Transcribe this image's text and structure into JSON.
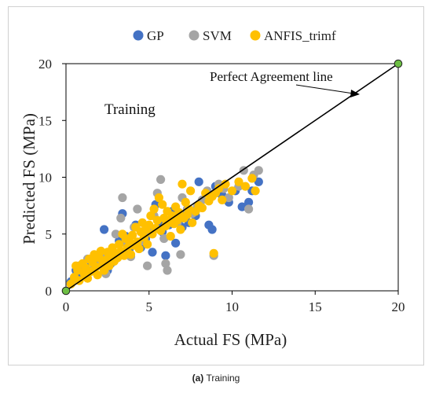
{
  "caption": {
    "label": "(a)",
    "text": "Training"
  },
  "chart_data": {
    "type": "scatter",
    "xlabel": "Actual FS (MPa)",
    "ylabel": "Predicted FS (MPa)",
    "xlim": [
      0,
      20
    ],
    "ylim": [
      0,
      20
    ],
    "xticks": [
      0,
      5,
      10,
      15,
      20
    ],
    "yticks": [
      0,
      5,
      10,
      15,
      20
    ],
    "grid": false,
    "legend_position": "top",
    "annotations": [
      {
        "text": "Training"
      },
      {
        "text": "Perfect Agreement line"
      }
    ],
    "reference_line": {
      "from": [
        0,
        0
      ],
      "to": [
        20,
        20
      ],
      "color": "#000000",
      "endpoint_color": "#6dbf44"
    },
    "series": [
      {
        "name": "GP",
        "color": "#4472c4",
        "points": [
          [
            0.3,
            0.8
          ],
          [
            0.6,
            1.8
          ],
          [
            0.8,
            1.2
          ],
          [
            1.0,
            2.0
          ],
          [
            1.2,
            1.4
          ],
          [
            1.5,
            2.6
          ],
          [
            1.7,
            2.0
          ],
          [
            1.9,
            2.4
          ],
          [
            2.1,
            3.0
          ],
          [
            2.3,
            5.4
          ],
          [
            2.5,
            1.8
          ],
          [
            2.7,
            2.4
          ],
          [
            3.0,
            3.2
          ],
          [
            3.2,
            4.4
          ],
          [
            3.4,
            6.8
          ],
          [
            3.6,
            4.8
          ],
          [
            3.8,
            3.6
          ],
          [
            4.2,
            5.8
          ],
          [
            4.5,
            3.8
          ],
          [
            4.8,
            4.6
          ],
          [
            5.2,
            3.4
          ],
          [
            5.4,
            7.6
          ],
          [
            5.6,
            6.0
          ],
          [
            5.8,
            5.2
          ],
          [
            6.0,
            3.1
          ],
          [
            6.2,
            5.8
          ],
          [
            6.4,
            7.0
          ],
          [
            6.6,
            4.2
          ],
          [
            6.8,
            6.2
          ],
          [
            7.0,
            5.6
          ],
          [
            7.2,
            6.8
          ],
          [
            7.4,
            6.0
          ],
          [
            7.8,
            6.6
          ],
          [
            8.0,
            9.6
          ],
          [
            8.6,
            5.8
          ],
          [
            8.8,
            5.4
          ],
          [
            9.0,
            9.2
          ],
          [
            9.4,
            8.4
          ],
          [
            9.8,
            7.8
          ],
          [
            10.2,
            8.8
          ],
          [
            10.6,
            7.4
          ],
          [
            11.0,
            7.8
          ],
          [
            11.2,
            8.8
          ],
          [
            11.6,
            9.6
          ]
        ]
      },
      {
        "name": "SVM",
        "color": "#a5a5a5",
        "points": [
          [
            0.5,
            1.0
          ],
          [
            0.8,
            2.2
          ],
          [
            1.1,
            1.6
          ],
          [
            1.3,
            2.8
          ],
          [
            1.6,
            1.8
          ],
          [
            1.8,
            3.0
          ],
          [
            2.0,
            2.2
          ],
          [
            2.2,
            3.2
          ],
          [
            2.4,
            1.5
          ],
          [
            2.7,
            3.4
          ],
          [
            3.0,
            5.0
          ],
          [
            3.3,
            6.4
          ],
          [
            3.4,
            8.2
          ],
          [
            3.6,
            4.2
          ],
          [
            3.9,
            3.0
          ],
          [
            4.1,
            5.6
          ],
          [
            4.3,
            7.2
          ],
          [
            4.6,
            4.4
          ],
          [
            4.9,
            2.2
          ],
          [
            5.0,
            5.2
          ],
          [
            5.3,
            6.6
          ],
          [
            5.5,
            8.6
          ],
          [
            5.7,
            9.8
          ],
          [
            5.9,
            4.6
          ],
          [
            6.0,
            2.4
          ],
          [
            6.1,
            1.8
          ],
          [
            6.4,
            6.4
          ],
          [
            6.7,
            6.0
          ],
          [
            6.9,
            3.2
          ],
          [
            7.0,
            8.2
          ],
          [
            7.3,
            7.2
          ],
          [
            7.6,
            6.8
          ],
          [
            7.9,
            7.4
          ],
          [
            8.2,
            8.0
          ],
          [
            8.5,
            8.8
          ],
          [
            8.9,
            3.1
          ],
          [
            9.2,
            9.4
          ],
          [
            9.5,
            9.0
          ],
          [
            9.8,
            8.2
          ],
          [
            10.4,
            9.2
          ],
          [
            10.7,
            10.6
          ],
          [
            11.0,
            7.2
          ],
          [
            11.3,
            10.2
          ],
          [
            11.6,
            10.6
          ]
        ]
      },
      {
        "name": "ANFIS_trimf",
        "color": "#ffc000",
        "points": [
          [
            0.3,
            0.6
          ],
          [
            0.5,
            1.2
          ],
          [
            0.6,
            2.2
          ],
          [
            0.7,
            1.8
          ],
          [
            0.8,
            0.9
          ],
          [
            1.0,
            2.4
          ],
          [
            1.1,
            1.5
          ],
          [
            1.2,
            2.0
          ],
          [
            1.3,
            1.1
          ],
          [
            1.4,
            2.8
          ],
          [
            1.5,
            1.7
          ],
          [
            1.6,
            2.5
          ],
          [
            1.7,
            3.2
          ],
          [
            1.8,
            2.1
          ],
          [
            1.9,
            1.4
          ],
          [
            2.0,
            2.9
          ],
          [
            2.1,
            3.5
          ],
          [
            2.2,
            2.3
          ],
          [
            2.3,
            1.8
          ],
          [
            2.4,
            2.7
          ],
          [
            2.5,
            3.4
          ],
          [
            2.6,
            2.2
          ],
          [
            2.7,
            3.0
          ],
          [
            2.8,
            3.8
          ],
          [
            2.9,
            2.6
          ],
          [
            3.0,
            3.3
          ],
          [
            3.1,
            2.9
          ],
          [
            3.2,
            4.1
          ],
          [
            3.3,
            3.5
          ],
          [
            3.4,
            5.0
          ],
          [
            3.5,
            3.1
          ],
          [
            3.6,
            4.6
          ],
          [
            3.7,
            3.8
          ],
          [
            3.8,
            4.4
          ],
          [
            3.9,
            3.2
          ],
          [
            4.0,
            4.9
          ],
          [
            4.1,
            4.0
          ],
          [
            4.2,
            5.6
          ],
          [
            4.3,
            4.3
          ],
          [
            4.4,
            3.7
          ],
          [
            4.5,
            5.2
          ],
          [
            4.6,
            6.0
          ],
          [
            4.7,
            4.7
          ],
          [
            4.8,
            5.4
          ],
          [
            4.9,
            4.1
          ],
          [
            5.0,
            5.8
          ],
          [
            5.1,
            6.6
          ],
          [
            5.2,
            5.0
          ],
          [
            5.3,
            7.2
          ],
          [
            5.4,
            5.5
          ],
          [
            5.5,
            6.2
          ],
          [
            5.6,
            8.2
          ],
          [
            5.7,
            5.3
          ],
          [
            5.8,
            7.6
          ],
          [
            5.9,
            6.4
          ],
          [
            6.0,
            5.7
          ],
          [
            6.1,
            7.0
          ],
          [
            6.2,
            6.0
          ],
          [
            6.3,
            4.8
          ],
          [
            6.4,
            6.6
          ],
          [
            6.5,
            5.9
          ],
          [
            6.6,
            7.4
          ],
          [
            6.7,
            6.2
          ],
          [
            6.8,
            6.9
          ],
          [
            6.9,
            5.4
          ],
          [
            7.0,
            9.4
          ],
          [
            7.1,
            6.4
          ],
          [
            7.2,
            7.8
          ],
          [
            7.3,
            6.7
          ],
          [
            7.4,
            7.2
          ],
          [
            7.5,
            8.8
          ],
          [
            7.6,
            6.0
          ],
          [
            7.8,
            7.0
          ],
          [
            8.0,
            7.5
          ],
          [
            8.2,
            7.3
          ],
          [
            8.4,
            8.6
          ],
          [
            8.6,
            7.9
          ],
          [
            8.8,
            8.3
          ],
          [
            8.9,
            3.3
          ],
          [
            9.0,
            8.6
          ],
          [
            9.2,
            9.0
          ],
          [
            9.4,
            8.0
          ],
          [
            9.6,
            9.4
          ],
          [
            10.0,
            8.8
          ],
          [
            10.4,
            9.6
          ],
          [
            10.8,
            9.2
          ],
          [
            11.2,
            9.9
          ],
          [
            11.4,
            8.8
          ]
        ]
      }
    ]
  }
}
